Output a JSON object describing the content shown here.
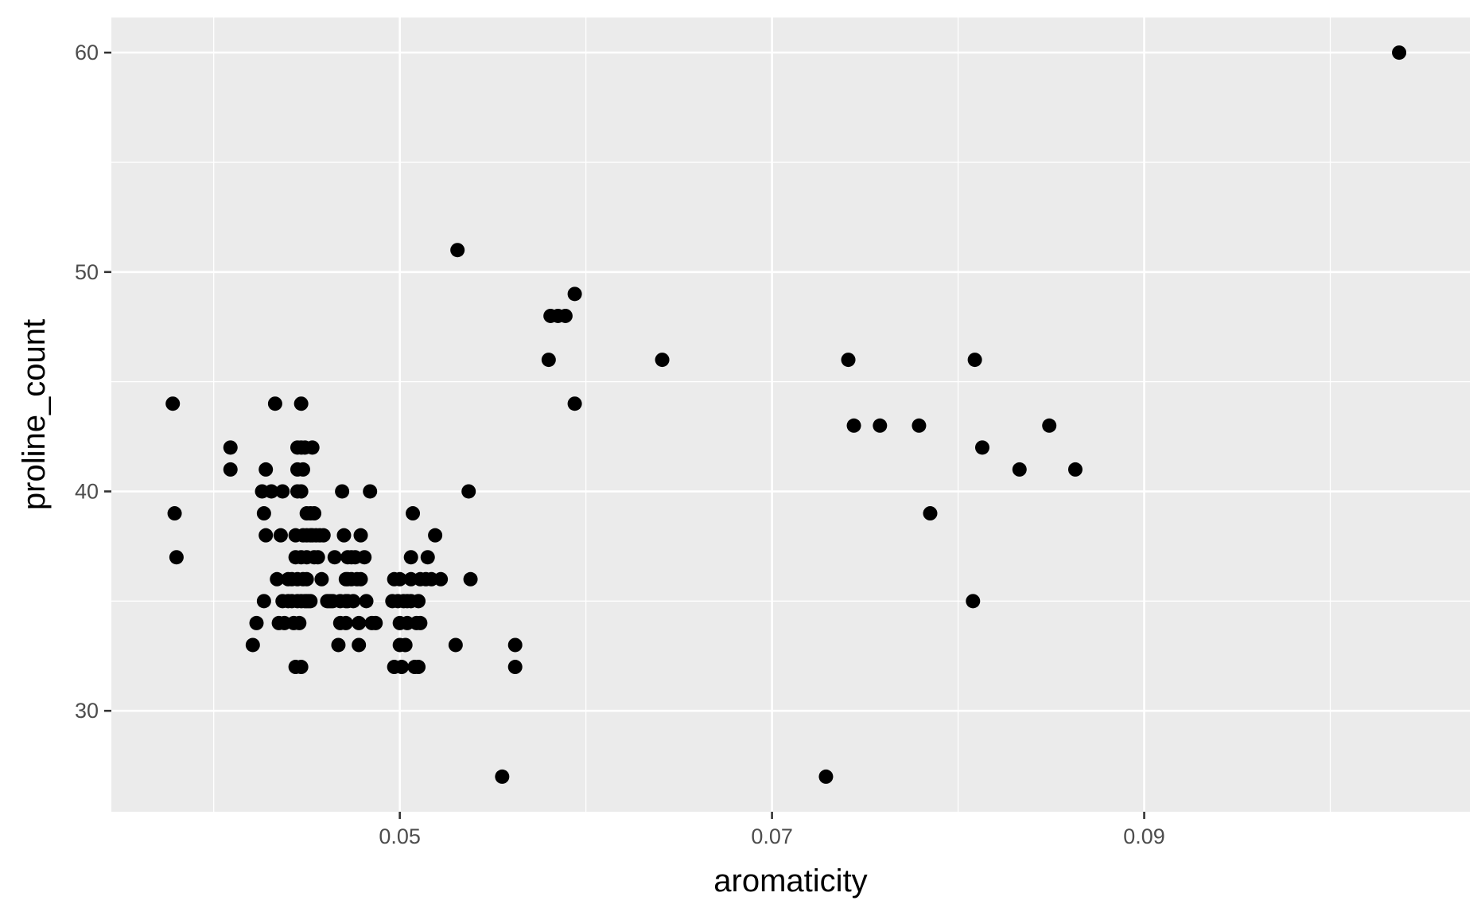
{
  "chart_data": {
    "type": "scatter",
    "xlabel": "aromaticity",
    "ylabel": "proline_count",
    "xlim": [
      0.0345,
      0.1075
    ],
    "ylim": [
      25.4,
      61.6
    ],
    "x_ticks": [
      0.05,
      0.07,
      0.09
    ],
    "x_tick_labels": [
      "0.05",
      "0.07",
      "0.09"
    ],
    "x_minor_ticks": [
      0.04,
      0.06,
      0.08,
      0.1
    ],
    "y_ticks": [
      30,
      40,
      50,
      60
    ],
    "y_tick_labels": [
      "30",
      "40",
      "50",
      "60"
    ],
    "y_minor_ticks": [
      35,
      45,
      55
    ],
    "grid": true,
    "colors": {
      "panel": "#ebebeb",
      "grid": "#ffffff",
      "point": "#000000"
    },
    "points": [
      [
        0.0378,
        44
      ],
      [
        0.0379,
        39
      ],
      [
        0.038,
        37
      ],
      [
        0.0409,
        42
      ],
      [
        0.0409,
        41
      ],
      [
        0.0421,
        33
      ],
      [
        0.0423,
        34
      ],
      [
        0.0426,
        40
      ],
      [
        0.0427,
        39
      ],
      [
        0.0427,
        35
      ],
      [
        0.0428,
        41
      ],
      [
        0.0428,
        38
      ],
      [
        0.0431,
        40
      ],
      [
        0.0433,
        44
      ],
      [
        0.0434,
        36
      ],
      [
        0.0435,
        34
      ],
      [
        0.0436,
        38
      ],
      [
        0.0437,
        40
      ],
      [
        0.0437,
        35
      ],
      [
        0.0438,
        34
      ],
      [
        0.044,
        36
      ],
      [
        0.044,
        35
      ],
      [
        0.0442,
        36
      ],
      [
        0.0442,
        35
      ],
      [
        0.0443,
        34
      ],
      [
        0.0444,
        38
      ],
      [
        0.0444,
        37
      ],
      [
        0.0444,
        32
      ],
      [
        0.0445,
        42
      ],
      [
        0.0445,
        41
      ],
      [
        0.0445,
        40
      ],
      [
        0.0445,
        36
      ],
      [
        0.0445,
        35
      ],
      [
        0.0446,
        34
      ],
      [
        0.0447,
        44
      ],
      [
        0.0447,
        42
      ],
      [
        0.0447,
        40
      ],
      [
        0.0447,
        37
      ],
      [
        0.0447,
        35
      ],
      [
        0.0447,
        32
      ],
      [
        0.0448,
        36
      ],
      [
        0.0448,
        38
      ],
      [
        0.0448,
        41
      ],
      [
        0.0449,
        42
      ],
      [
        0.0449,
        35
      ],
      [
        0.045,
        36
      ],
      [
        0.045,
        38
      ],
      [
        0.045,
        39
      ],
      [
        0.045,
        35
      ],
      [
        0.045,
        37
      ],
      [
        0.0451,
        35
      ],
      [
        0.0452,
        39
      ],
      [
        0.0452,
        38
      ],
      [
        0.0452,
        35
      ],
      [
        0.0453,
        42
      ],
      [
        0.0453,
        38
      ],
      [
        0.0454,
        39
      ],
      [
        0.0454,
        37
      ],
      [
        0.0455,
        38
      ],
      [
        0.0456,
        37
      ],
      [
        0.0457,
        38
      ],
      [
        0.0458,
        36
      ],
      [
        0.0459,
        38
      ],
      [
        0.0461,
        35
      ],
      [
        0.0462,
        35
      ],
      [
        0.0463,
        35
      ],
      [
        0.0464,
        35
      ],
      [
        0.0465,
        37
      ],
      [
        0.0467,
        33
      ],
      [
        0.0468,
        35
      ],
      [
        0.0468,
        34
      ],
      [
        0.0469,
        40
      ],
      [
        0.047,
        38
      ],
      [
        0.0471,
        36
      ],
      [
        0.0471,
        35
      ],
      [
        0.0471,
        34
      ],
      [
        0.0472,
        37
      ],
      [
        0.0472,
        36
      ],
      [
        0.0472,
        35
      ],
      [
        0.0474,
        37
      ],
      [
        0.0474,
        36
      ],
      [
        0.0475,
        35
      ],
      [
        0.0476,
        37
      ],
      [
        0.0477,
        36
      ],
      [
        0.0478,
        33
      ],
      [
        0.0478,
        34
      ],
      [
        0.0479,
        36
      ],
      [
        0.0479,
        38
      ],
      [
        0.0481,
        37
      ],
      [
        0.0482,
        35
      ],
      [
        0.0484,
        40
      ],
      [
        0.0485,
        34
      ],
      [
        0.0487,
        34
      ],
      [
        0.0496,
        35
      ],
      [
        0.0497,
        36
      ],
      [
        0.0497,
        32
      ],
      [
        0.0499,
        35
      ],
      [
        0.05,
        36
      ],
      [
        0.05,
        33
      ],
      [
        0.05,
        34
      ],
      [
        0.0501,
        32
      ],
      [
        0.0502,
        35
      ],
      [
        0.0503,
        33
      ],
      [
        0.0504,
        35
      ],
      [
        0.0504,
        34
      ],
      [
        0.0506,
        35
      ],
      [
        0.0506,
        37
      ],
      [
        0.0506,
        36
      ],
      [
        0.0507,
        39
      ],
      [
        0.0508,
        32
      ],
      [
        0.0509,
        34
      ],
      [
        0.051,
        32
      ],
      [
        0.051,
        35
      ],
      [
        0.0511,
        36
      ],
      [
        0.0511,
        34
      ],
      [
        0.0514,
        36
      ],
      [
        0.0515,
        37
      ],
      [
        0.0517,
        36
      ],
      [
        0.0519,
        38
      ],
      [
        0.0522,
        36
      ],
      [
        0.053,
        33
      ],
      [
        0.0531,
        51
      ],
      [
        0.0537,
        40
      ],
      [
        0.0538,
        36
      ],
      [
        0.0555,
        27
      ],
      [
        0.0562,
        33
      ],
      [
        0.0562,
        32
      ],
      [
        0.058,
        46
      ],
      [
        0.0581,
        48
      ],
      [
        0.0585,
        48
      ],
      [
        0.0589,
        48
      ],
      [
        0.0594,
        49
      ],
      [
        0.0594,
        44
      ],
      [
        0.0641,
        46
      ],
      [
        0.0729,
        27
      ],
      [
        0.0741,
        46
      ],
      [
        0.0744,
        43
      ],
      [
        0.0758,
        43
      ],
      [
        0.0779,
        43
      ],
      [
        0.0785,
        39
      ],
      [
        0.0808,
        35
      ],
      [
        0.0809,
        46
      ],
      [
        0.0813,
        42
      ],
      [
        0.0833,
        41
      ],
      [
        0.0849,
        43
      ],
      [
        0.0863,
        41
      ],
      [
        0.1037,
        60
      ]
    ]
  }
}
